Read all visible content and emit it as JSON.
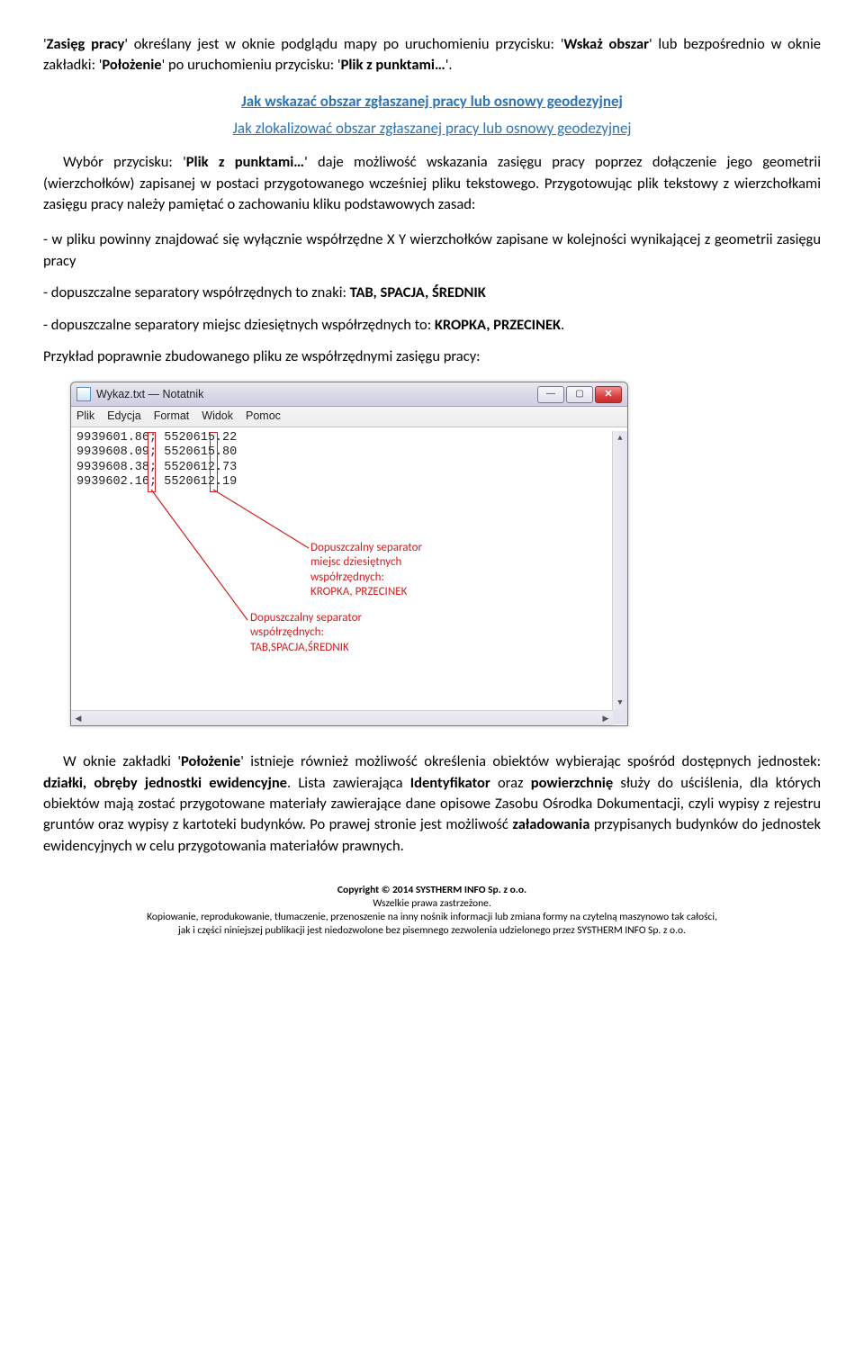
{
  "para1_pre": "'",
  "para1_b1": "Zasięg pracy",
  "para1_mid1": "' określany jest w oknie podglądu mapy po uruchomieniu przycisku: '",
  "para1_b2": "Wskaż obszar",
  "para1_mid2": "' lub bezpośrednio w oknie zakładki: '",
  "para1_b3": "Położenie",
  "para1_mid3": "' po uruchomieniu przycisku: '",
  "para1_b4": "Plik z punktami…",
  "para1_end": "'.",
  "link1": "Jak wskazać obszar zgłaszanej pracy lub osnowy geodezyjnej",
  "link2": "Jak zlokalizować obszar zgłaszanej pracy lub osnowy geodezyjnej",
  "para2_pre": "Wybór przycisku: '",
  "para2_b1": "Plik z punktami…",
  "para2_rest": "' daje możliwość wskazania zasięgu pracy poprzez dołączenie jego geometrii (wierzchołków) zapisanej w postaci przygotowanego wcześniej pliku tekstowego. Przygotowując plik tekstowy z wierzchołkami zasięgu pracy należy pamiętać o zachowaniu kliku podstawowych zasad:",
  "bullet1": "- w pliku powinny znajdować się wyłącznie współrzędne X Y wierzchołków zapisane w kolejności wynikającej z geometrii zasięgu pracy",
  "bullet2_pre": "- dopuszczalne separatory współrzędnych to znaki: ",
  "bullet2_b": "TAB, SPACJA, ŚREDNIK",
  "bullet3_pre": "- dopuszczalne separatory miejsc dziesiętnych współrzędnych to: ",
  "bullet3_b": "KROPKA, PRZECINEK",
  "bullet3_end": ".",
  "para3": "Przykład poprawnie zbudowanego pliku ze współrzędnymi zasięgu pracy:",
  "window": {
    "title": "Wykaz.txt — Notatnik",
    "menu": [
      "Plik",
      "Edycja",
      "Format",
      "Widok",
      "Pomoc"
    ],
    "lines": [
      "9939601.86; 5520615.22",
      "9939608.09; 5520615.80",
      "9939608.38; 5520612.73",
      "9939602.16; 5520612.19"
    ],
    "annot1": "Dopuszczalny separator\nmiejsc dziesiętnych\nwspółrzędnych:\nKROPKA, PRZECINEK",
    "annot2": "Dopuszczalny separator\nwspółrzędnych:\nTAB,SPACJA,ŚREDNIK"
  },
  "para4_pre": "W oknie zakładki '",
  "para4_b1": "Położenie",
  "para4_mid1": "' istnieje również możliwość określenia obiektów wybierając spośród dostępnych jednostek: ",
  "para4_b2": "działki, obręby",
  "para4_mid1b": "  ",
  "para4_b2b": "jednostki ewidencyjne",
  "para4_mid2": ". Lista zawierająca ",
  "para4_b3": "Identyfikator",
  "para4_mid3": " oraz ",
  "para4_b4": "powierzchnię",
  "para4_mid4": " służy do uściślenia, dla których obiektów mają zostać przygotowane materiały zawierające dane opisowe Zasobu Ośrodka Dokumentacji, czyli wypisy z rejestru gruntów oraz wypisy z kartoteki budynków. Po prawej stronie jest możliwość ",
  "para4_b5": "załadowania",
  "para4_end": " przypisanych budynków do jednostek ewidencyjnych w celu przygotowania materiałów prawnych.",
  "footer": {
    "l1": "Copyright © 2014 SYSTHERM INFO Sp. z o.o.",
    "l2": "Wszelkie prawa zastrzeżone.",
    "l3": "Kopiowanie, reprodukowanie, tłumaczenie, przenoszenie na inny nośnik informacji lub zmiana formy na czytelną maszynowo tak całości,",
    "l4": "jak i części niniejszej publikacji jest niedozwolone bez pisemnego zezwolenia udzielonego przez SYSTHERM INFO Sp. z o.o."
  }
}
